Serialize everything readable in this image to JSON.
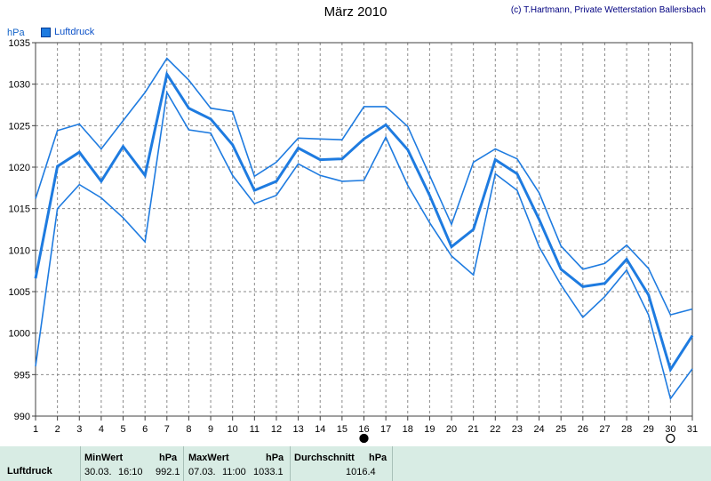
{
  "header": {
    "title": "März 2010",
    "copyright": "(c) T.Hartmann, Private Wetterstation Ballersbach",
    "unit": "hPa",
    "legend_label": "Luftdruck",
    "legend_color": "#1e7be0"
  },
  "chart_data": {
    "type": "line",
    "title": "März 2010",
    "ylabel": "hPa",
    "x": [
      1,
      2,
      3,
      4,
      5,
      6,
      7,
      8,
      9,
      10,
      11,
      12,
      13,
      14,
      15,
      16,
      17,
      18,
      19,
      20,
      21,
      22,
      23,
      24,
      25,
      26,
      27,
      28,
      29,
      30,
      31
    ],
    "ylim": [
      990,
      1035
    ],
    "yticks": [
      990,
      995,
      1000,
      1005,
      1010,
      1015,
      1020,
      1025,
      1030,
      1035
    ],
    "grid": true,
    "legend_position": "top-left",
    "line_color": "#1e7be0",
    "series": [
      {
        "name": "Luftdruck",
        "role": "max",
        "values": [
          1016.2,
          1024.4,
          1025.2,
          1022.2,
          1025.6,
          1029.0,
          1033.1,
          1030.5,
          1027.1,
          1026.7,
          1018.9,
          1020.6,
          1023.5,
          1023.4,
          1023.3,
          1027.3,
          1027.3,
          1024.9,
          1019.0,
          1013.1,
          1020.6,
          1022.2,
          1021.0,
          1016.9,
          1010.5,
          1007.7,
          1008.4,
          1010.6,
          1007.8,
          1002.2,
          1002.9
        ]
      },
      {
        "name": "Luftdruck",
        "role": "avg",
        "values": [
          1006.6,
          1020.1,
          1021.8,
          1018.3,
          1022.5,
          1019.0,
          1031.2,
          1027.1,
          1025.8,
          1022.7,
          1017.2,
          1018.3,
          1022.3,
          1020.9,
          1021.0,
          1023.4,
          1025.1,
          1022.1,
          1016.6,
          1010.4,
          1012.5,
          1020.9,
          1019.2,
          1013.7,
          1007.7,
          1005.6,
          1006.0,
          1008.9,
          1004.6,
          995.6,
          999.7
        ]
      },
      {
        "name": "Luftdruck",
        "role": "min",
        "values": [
          996.0,
          1015.0,
          1017.9,
          1016.3,
          1013.9,
          1011.0,
          1029.0,
          1024.5,
          1024.1,
          1019.0,
          1015.6,
          1016.6,
          1020.4,
          1019.0,
          1018.3,
          1018.4,
          1023.6,
          1017.8,
          1013.3,
          1009.3,
          1007.0,
          1019.2,
          1017.2,
          1010.4,
          1005.8,
          1001.9,
          1004.4,
          1007.6,
          1002.2,
          992.1,
          995.7
        ]
      }
    ],
    "markers": [
      {
        "day": 16,
        "type": "filled"
      },
      {
        "day": 30,
        "type": "hollow"
      }
    ]
  },
  "stats": {
    "row_label": "Luftdruck",
    "min": {
      "label": "MinWert",
      "unit": "hPa",
      "date": "30.03.",
      "time": "16:10",
      "value": "992.1"
    },
    "max": {
      "label": "MaxWert",
      "unit": "hPa",
      "date": "07.03.",
      "time": "11:00",
      "value": "1033.1"
    },
    "avg": {
      "label": "Durchschnitt",
      "unit": "hPa",
      "value": "1016.4"
    }
  }
}
